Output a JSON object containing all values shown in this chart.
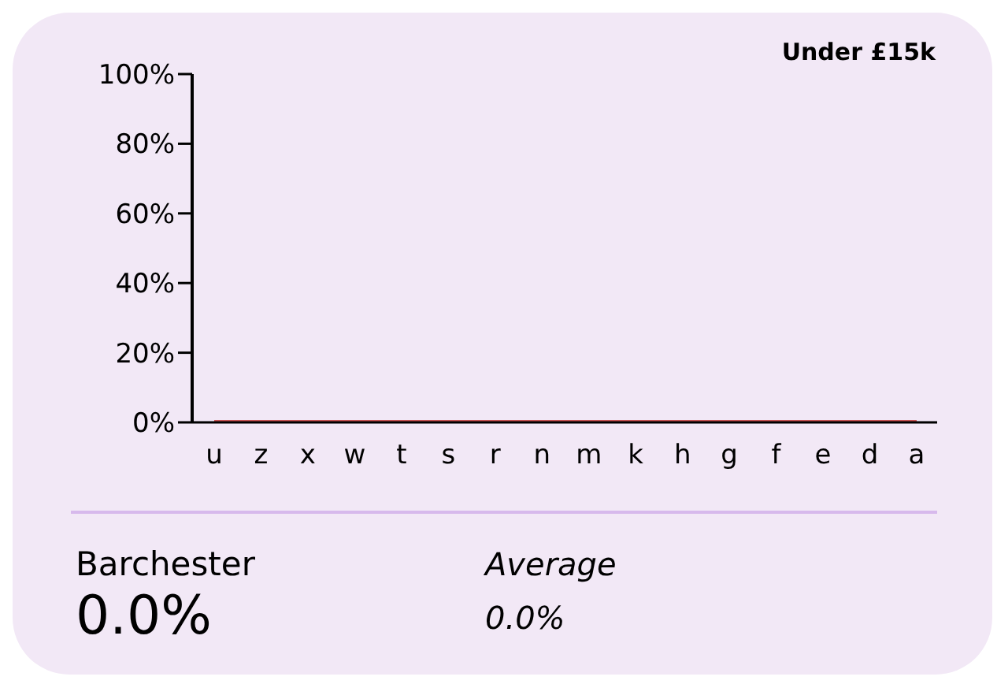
{
  "chart_data": {
    "type": "line",
    "title": "Under £15k",
    "categories": [
      "u",
      "z",
      "x",
      "w",
      "t",
      "s",
      "r",
      "n",
      "m",
      "k",
      "h",
      "g",
      "f",
      "e",
      "d",
      "a"
    ],
    "series": [
      {
        "color": "#cd5555",
        "values": [
          0,
          0,
          0,
          0,
          0,
          0,
          0,
          0,
          0,
          0,
          0,
          0,
          0,
          0,
          0,
          0
        ]
      }
    ],
    "ylim": [
      0,
      100
    ],
    "yticks": [
      {
        "value": 0,
        "label": "0%"
      },
      {
        "value": 20,
        "label": "20%"
      },
      {
        "value": 40,
        "label": "40%"
      },
      {
        "value": 60,
        "label": "60%"
      },
      {
        "value": 80,
        "label": "80%"
      },
      {
        "value": 100,
        "label": "100%"
      }
    ],
    "marker": "none",
    "annotations": [
      "Barchester",
      "0.0%",
      "Average",
      "0.0%"
    ]
  }
}
